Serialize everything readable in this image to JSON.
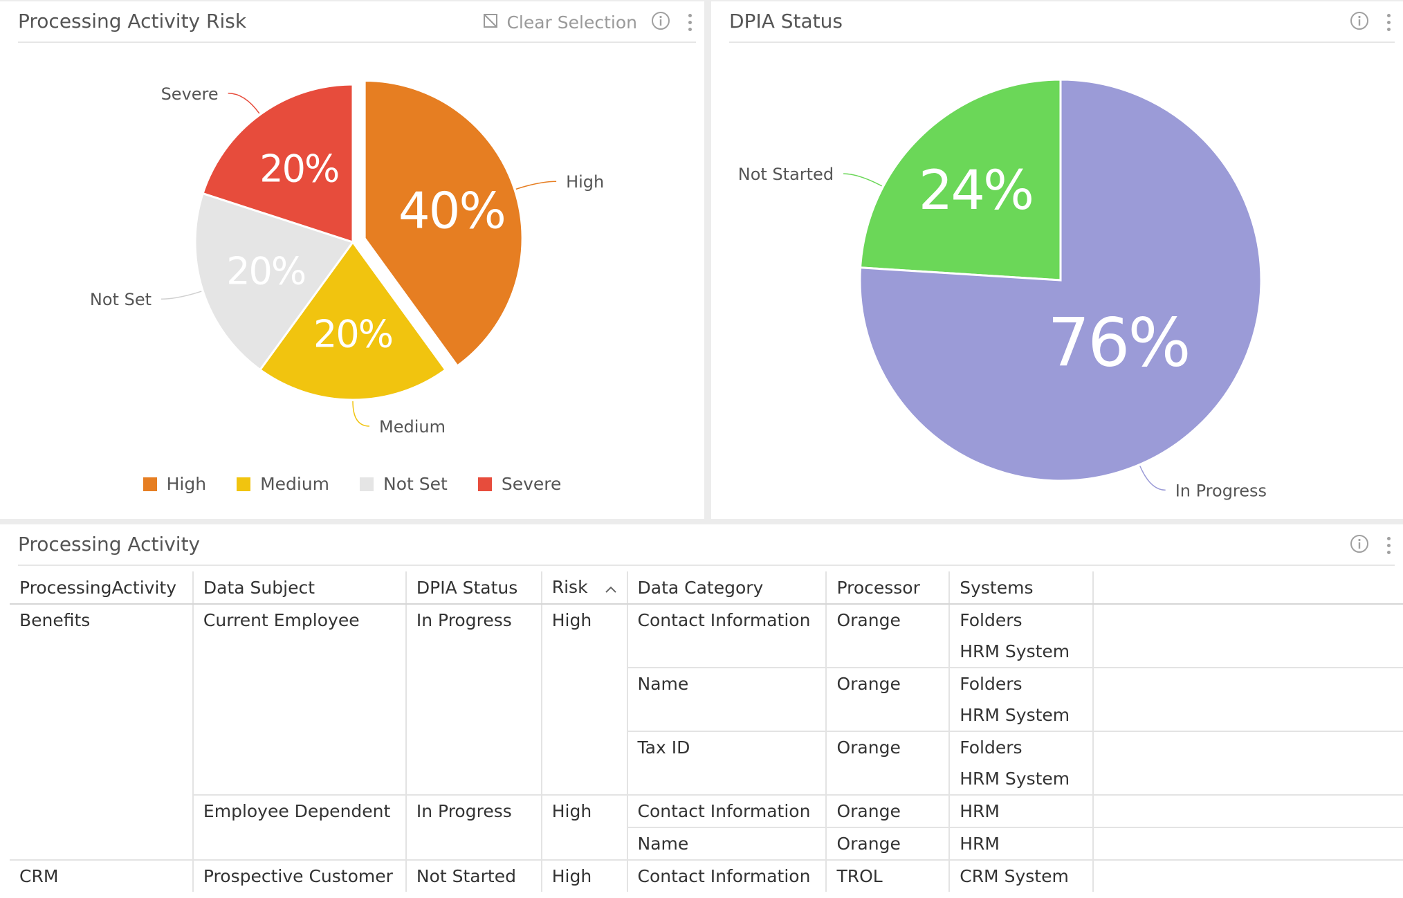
{
  "panels": {
    "risk": {
      "title": "Processing Activity Risk",
      "clear_selection": "Clear Selection",
      "icons": [
        "clear-selection-icon",
        "info-icon",
        "more-options-icon"
      ]
    },
    "dpia": {
      "title": "DPIA Status",
      "icons": [
        "info-icon",
        "more-options-icon"
      ]
    },
    "table": {
      "title": "Processing Activity",
      "icons": [
        "info-icon",
        "more-options-icon"
      ]
    }
  },
  "chart_data": [
    {
      "type": "pie",
      "title": "Processing Activity Risk",
      "categories": [
        "High",
        "Medium",
        "Not Set",
        "Severe"
      ],
      "values": [
        40,
        20,
        20,
        20
      ],
      "labels": [
        "40%",
        "20%",
        "20%",
        "20%"
      ],
      "colors": [
        "#e67e22",
        "#f1c40f",
        "#e5e5e5",
        "#e74c3c"
      ],
      "label_colors": [
        "#ffffff",
        "#ffffff",
        "#ffffff",
        "#ffffff"
      ],
      "exploded": "High",
      "legend": {
        "position": "bottom",
        "entries": [
          "High",
          "Medium",
          "Not Set",
          "Severe"
        ]
      }
    },
    {
      "type": "pie",
      "title": "DPIA Status",
      "categories": [
        "Not Started",
        "In Progress"
      ],
      "values": [
        24,
        76
      ],
      "labels": [
        "24%",
        "76%"
      ],
      "colors": [
        "#6bd758",
        "#9b9bd7"
      ],
      "label_colors": [
        "#ffffff",
        "#ffffff"
      ]
    }
  ],
  "table": {
    "columns": [
      "ProcessingActivity",
      "Data Subject",
      "DPIA Status",
      "Risk",
      "Data Category",
      "Processor",
      "Systems"
    ],
    "sort": {
      "column": "Risk",
      "direction": "ascending",
      "icon": "sort-ascending-icon"
    },
    "rows": [
      {
        "activity": "Benefits",
        "subject": "Current Employee",
        "status": "In Progress",
        "risk": "High",
        "category": "Contact Information",
        "processor": "Orange",
        "systems": [
          "Folders",
          "HRM System"
        ]
      },
      {
        "activity": "",
        "subject": "",
        "status": "",
        "risk": "",
        "category": "Name",
        "processor": "Orange",
        "systems": [
          "Folders",
          "HRM System"
        ]
      },
      {
        "activity": "",
        "subject": "",
        "status": "",
        "risk": "",
        "category": "Tax ID",
        "processor": "Orange",
        "systems": [
          "Folders",
          "HRM System"
        ]
      },
      {
        "activity": "",
        "subject": "Employee Dependent",
        "status": "In Progress",
        "risk": "High",
        "category": "Contact Information",
        "processor": "Orange",
        "systems": [
          "HRM"
        ]
      },
      {
        "activity": "",
        "subject": "",
        "status": "",
        "risk": "",
        "category": "Name",
        "processor": "Orange",
        "systems": [
          "HRM"
        ]
      },
      {
        "activity": "CRM",
        "subject": "Prospective Customer",
        "status": "Not Started",
        "risk": "High",
        "category": "Contact Information",
        "processor": "TROL",
        "systems": [
          "CRM System"
        ]
      }
    ]
  }
}
